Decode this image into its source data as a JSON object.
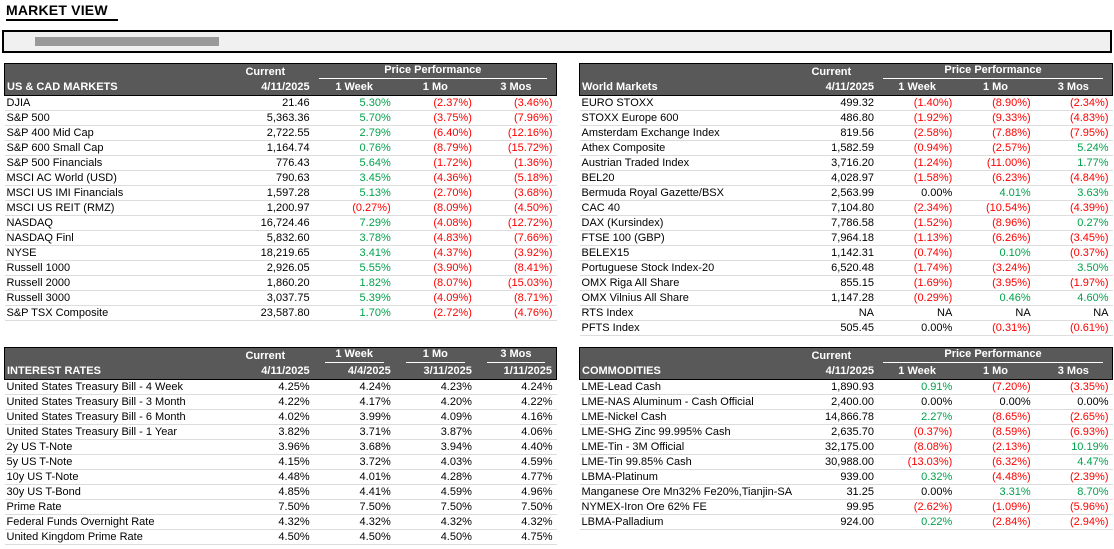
{
  "page": {
    "title": "MARKET VIEW"
  },
  "colors": {
    "header_bg": "#595959",
    "header_text": "#ffffff",
    "positive": "#00a24b",
    "negative": "#ff0000",
    "neutral": "#000000",
    "grid_line": "#dcdcdc",
    "banner_bg": "#f0f0f0",
    "banner_bar": "#999999"
  },
  "tables": [
    {
      "id": "us-cad-markets",
      "name": "US & CAD MARKETS",
      "header_style": "grouped",
      "current_label": "Current",
      "current_date": "4/11/2025",
      "group_label": "Price Performance",
      "period_labels": [
        "1 Week",
        "1 Mo",
        "3 Mos"
      ],
      "colorize": true,
      "rows": [
        {
          "label": "DJIA",
          "values": [
            "21.46",
            "5.30%",
            "(2.37%)",
            "(3.46%)"
          ]
        },
        {
          "label": "S&P 500",
          "values": [
            "5,363.36",
            "5.70%",
            "(3.75%)",
            "(7.96%)"
          ]
        },
        {
          "label": "S&P 400 Mid Cap",
          "values": [
            "2,722.55",
            "2.79%",
            "(6.40%)",
            "(12.16%)"
          ]
        },
        {
          "label": "S&P 600 Small Cap",
          "values": [
            "1,164.74",
            "0.76%",
            "(8.79%)",
            "(15.72%)"
          ]
        },
        {
          "label": "S&P 500 Financials",
          "values": [
            "776.43",
            "5.64%",
            "(1.72%)",
            "(1.36%)"
          ]
        },
        {
          "label": "MSCI AC World (USD)",
          "values": [
            "790.63",
            "3.45%",
            "(4.36%)",
            "(5.18%)"
          ]
        },
        {
          "label": "MSCI US IMI Financials",
          "values": [
            "1,597.28",
            "5.13%",
            "(2.70%)",
            "(3.68%)"
          ]
        },
        {
          "label": "MSCI US REIT (RMZ)",
          "values": [
            "1,200.97",
            "(0.27%)",
            "(8.09%)",
            "(4.50%)"
          ]
        },
        {
          "label": "NASDAQ",
          "values": [
            "16,724.46",
            "7.29%",
            "(4.08%)",
            "(12.72%)"
          ]
        },
        {
          "label": "NASDAQ Finl",
          "values": [
            "5,832.60",
            "3.78%",
            "(4.83%)",
            "(7.66%)"
          ]
        },
        {
          "label": "NYSE",
          "values": [
            "18,219.65",
            "3.41%",
            "(4.37%)",
            "(3.92%)"
          ]
        },
        {
          "label": "Russell 1000",
          "values": [
            "2,926.05",
            "5.55%",
            "(3.90%)",
            "(8.41%)"
          ]
        },
        {
          "label": "Russell 2000",
          "values": [
            "1,860.20",
            "1.82%",
            "(8.07%)",
            "(15.03%)"
          ]
        },
        {
          "label": "Russell 3000",
          "values": [
            "3,037.75",
            "5.39%",
            "(4.09%)",
            "(8.71%)"
          ]
        },
        {
          "label": "S&P TSX Composite",
          "values": [
            "23,587.80",
            "1.70%",
            "(2.72%)",
            "(4.76%)"
          ]
        }
      ]
    },
    {
      "id": "world-markets",
      "name": "World Markets",
      "header_style": "grouped",
      "current_label": "Current",
      "current_date": "4/11/2025",
      "group_label": "Price Performance",
      "period_labels": [
        "1 Week",
        "1 Mo",
        "3 Mos"
      ],
      "colorize": true,
      "rows": [
        {
          "label": "EURO STOXX",
          "values": [
            "499.32",
            "(1.40%)",
            "(8.90%)",
            "(2.34%)"
          ]
        },
        {
          "label": "STOXX Europe 600",
          "values": [
            "486.80",
            "(1.92%)",
            "(9.33%)",
            "(4.83%)"
          ]
        },
        {
          "label": "Amsterdam Exchange Index",
          "values": [
            "819.56",
            "(2.58%)",
            "(7.88%)",
            "(7.95%)"
          ]
        },
        {
          "label": "Athex Composite",
          "values": [
            "1,582.59",
            "(0.94%)",
            "(2.57%)",
            "5.24%"
          ]
        },
        {
          "label": "Austrian Traded Index",
          "values": [
            "3,716.20",
            "(1.24%)",
            "(11.00%)",
            "1.77%"
          ]
        },
        {
          "label": "BEL20",
          "values": [
            "4,028.97",
            "(1.58%)",
            "(6.23%)",
            "(4.84%)"
          ]
        },
        {
          "label": "Bermuda Royal Gazette/BSX",
          "values": [
            "2,563.99",
            "0.00%",
            "4.01%",
            "3.63%"
          ]
        },
        {
          "label": "CAC 40",
          "values": [
            "7,104.80",
            "(2.34%)",
            "(10.54%)",
            "(4.39%)"
          ]
        },
        {
          "label": "DAX (Kursindex)",
          "values": [
            "7,786.58",
            "(1.52%)",
            "(8.96%)",
            "0.27%"
          ]
        },
        {
          "label": "FTSE 100 (GBP)",
          "values": [
            "7,964.18",
            "(1.13%)",
            "(6.26%)",
            "(3.45%)"
          ]
        },
        {
          "label": "BELEX15",
          "values": [
            "1,142.31",
            "(0.74%)",
            "0.10%",
            "(0.37%)"
          ]
        },
        {
          "label": "Portuguese Stock Index-20",
          "values": [
            "6,520.48",
            "(1.74%)",
            "(3.24%)",
            "3.50%"
          ]
        },
        {
          "label": "OMX Riga All Share",
          "values": [
            "855.15",
            "(1.69%)",
            "(3.95%)",
            "(1.97%)"
          ]
        },
        {
          "label": "OMX Vilnius All Share",
          "values": [
            "1,147.28",
            "(0.29%)",
            "0.46%",
            "4.60%"
          ]
        },
        {
          "label": "RTS Index",
          "values": [
            "NA",
            "NA",
            "NA",
            "NA"
          ]
        },
        {
          "label": "PFTS Index",
          "values": [
            "505.45",
            "0.00%",
            "(0.31%)",
            "(0.61%)"
          ]
        }
      ]
    },
    {
      "id": "interest-rates",
      "name": "INTEREST RATES",
      "header_style": "dated",
      "column_labels": [
        "Current",
        "1 Week",
        "1 Mo",
        "3 Mos"
      ],
      "column_dates": [
        "4/11/2025",
        "4/4/2025",
        "3/11/2025",
        "1/11/2025"
      ],
      "colorize": false,
      "rows": [
        {
          "label": "United States Treasury Bill - 4 Week",
          "values": [
            "4.25%",
            "4.24%",
            "4.23%",
            "4.24%"
          ]
        },
        {
          "label": "United States Treasury Bill - 3 Month",
          "values": [
            "4.22%",
            "4.17%",
            "4.20%",
            "4.22%"
          ]
        },
        {
          "label": "United States Treasury Bill - 6 Month",
          "values": [
            "4.02%",
            "3.99%",
            "4.09%",
            "4.16%"
          ]
        },
        {
          "label": "United States Treasury Bill - 1 Year",
          "values": [
            "3.82%",
            "3.71%",
            "3.87%",
            "4.06%"
          ]
        },
        {
          "label": "2y US T-Note",
          "values": [
            "3.96%",
            "3.68%",
            "3.94%",
            "4.40%"
          ]
        },
        {
          "label": "5y US T-Note",
          "values": [
            "4.15%",
            "3.72%",
            "4.03%",
            "4.59%"
          ]
        },
        {
          "label": "10y US T-Note",
          "values": [
            "4.48%",
            "4.01%",
            "4.28%",
            "4.77%"
          ]
        },
        {
          "label": "30y US T-Bond",
          "values": [
            "4.85%",
            "4.41%",
            "4.59%",
            "4.96%"
          ]
        },
        {
          "label": "Prime Rate",
          "values": [
            "7.50%",
            "7.50%",
            "7.50%",
            "7.50%"
          ]
        },
        {
          "label": "Federal Funds Overnight Rate",
          "values": [
            "4.32%",
            "4.32%",
            "4.32%",
            "4.32%"
          ]
        },
        {
          "label": "United Kingdom Prime Rate",
          "values": [
            "4.50%",
            "4.50%",
            "4.50%",
            "4.75%"
          ]
        }
      ]
    },
    {
      "id": "commodities",
      "name": "COMMODITIES",
      "header_style": "grouped",
      "current_label": "Current",
      "current_date": "4/11/2025",
      "group_label": "Price Performance",
      "period_labels": [
        "1 Week",
        "1 Mo",
        "3 Mos"
      ],
      "colorize": true,
      "rows": [
        {
          "label": "LME-Lead Cash",
          "values": [
            "1,890.93",
            "0.91%",
            "(7.20%)",
            "(3.35%)"
          ]
        },
        {
          "label": "LME-NAS Aluminum - Cash Official",
          "values": [
            "2,400.00",
            "0.00%",
            "0.00%",
            "0.00%"
          ]
        },
        {
          "label": "LME-Nickel Cash",
          "values": [
            "14,866.78",
            "2.27%",
            "(8.65%)",
            "(2.65%)"
          ]
        },
        {
          "label": "LME-SHG Zinc 99.995% Cash",
          "values": [
            "2,635.70",
            "(0.37%)",
            "(8.59%)",
            "(6.93%)"
          ]
        },
        {
          "label": "LME-Tin - 3M Official",
          "values": [
            "32,175.00",
            "(8.08%)",
            "(2.13%)",
            "10.19%"
          ]
        },
        {
          "label": "LME-Tin 99.85% Cash",
          "values": [
            "30,988.00",
            "(13.03%)",
            "(6.32%)",
            "4.47%"
          ]
        },
        {
          "label": "LBMA-Platinum",
          "values": [
            "939.00",
            "0.32%",
            "(4.48%)",
            "(2.39%)"
          ]
        },
        {
          "label": "Manganese Ore Mn32% Fe20%,Tianjin-SA",
          "values": [
            "31.25",
            "0.00%",
            "3.31%",
            "8.70%"
          ]
        },
        {
          "label": "NYMEX-Iron Ore 62% FE",
          "values": [
            "99.95",
            "(2.62%)",
            "(1.09%)",
            "(5.96%)"
          ]
        },
        {
          "label": "LBMA-Palladium",
          "values": [
            "924.00",
            "0.22%",
            "(2.84%)",
            "(2.94%)"
          ]
        }
      ]
    }
  ]
}
